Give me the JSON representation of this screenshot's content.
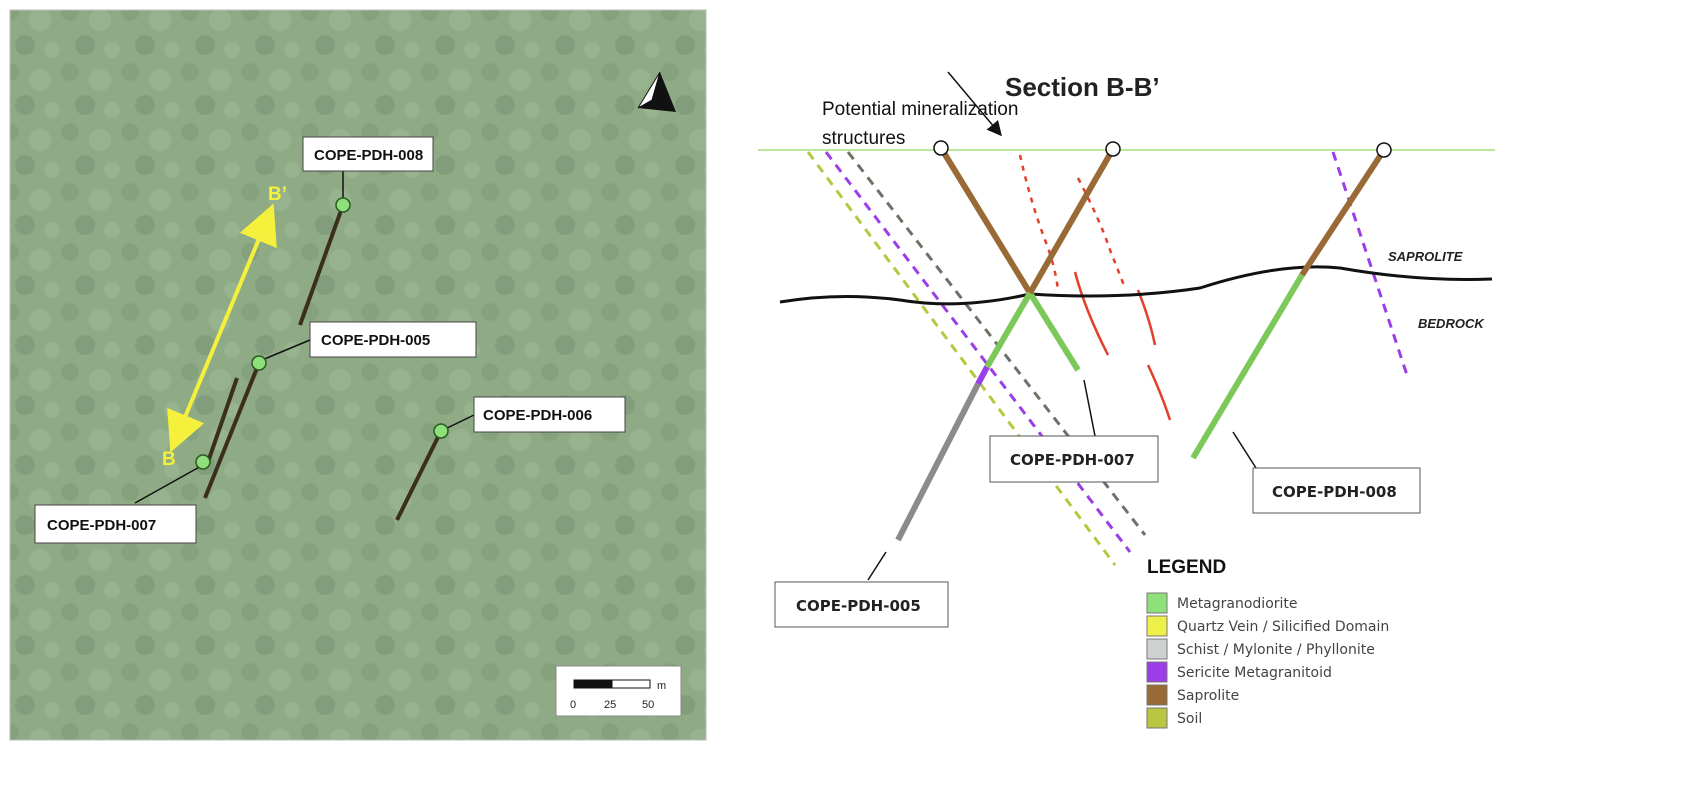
{
  "map": {
    "labels": {
      "pdh008": "COPE-PDH-008",
      "pdh005": "COPE-PDH-005",
      "pdh006": "COPE-PDH-006",
      "pdh007": "COPE-PDH-007"
    },
    "section_ends": {
      "start": "B",
      "end": "B’"
    },
    "north_arrow": "N",
    "scale": {
      "unit": "m",
      "ticks": [
        "0",
        "25",
        "50"
      ]
    }
  },
  "section": {
    "title": "Section B-B’",
    "annotation": [
      "Potential mineralization",
      "structures"
    ],
    "zones": {
      "upper": "SAPROLITE",
      "lower": "BEDROCK"
    },
    "labels": {
      "pdh007": "COPE-PDH-007",
      "pdh008": "COPE-PDH-008",
      "pdh005": "COPE-PDH-005"
    }
  },
  "legend": {
    "title": "LEGEND",
    "items": [
      {
        "label": "Metagranodiorite",
        "color": "#8ee07a"
      },
      {
        "label": "Quartz Vein / Silicified Domain",
        "color": "#eef04a"
      },
      {
        "label": "Schist / Mylonite / Phyllonite",
        "color": "#cfd1d0"
      },
      {
        "label": "Sericite Metagranitoid",
        "color": "#9b3ee8"
      },
      {
        "label": "Saprolite",
        "color": "#9a6a36"
      },
      {
        "label": "Soil",
        "color": "#b9c640"
      }
    ]
  }
}
